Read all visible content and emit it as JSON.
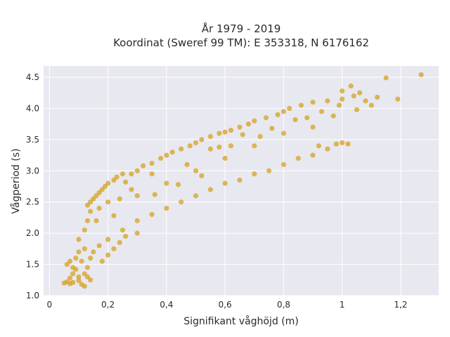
{
  "chart_data": {
    "type": "scatter",
    "title": "År 1979 - 2019",
    "subtitle": "Koordinat (Sweref 99 TM): E 353318, N 6176162",
    "xlabel": "Signifikant våghöjd (m)",
    "ylabel": "Vågperiod (s)",
    "xlim": [
      -0.02,
      1.33
    ],
    "ylim": [
      1.0,
      4.68
    ],
    "x_ticks": [
      0,
      0.2,
      0.4,
      0.6,
      0.8,
      1,
      1.2
    ],
    "x_tick_labels": [
      "0",
      "0,2",
      "0,4",
      "0,6",
      "0,8",
      "1",
      "1,2"
    ],
    "y_ticks": [
      1.0,
      1.5,
      2.0,
      2.5,
      3.0,
      3.5,
      4.0,
      4.5
    ],
    "y_tick_labels": [
      "1.0",
      "1.5",
      "2.0",
      "2.5",
      "3.0",
      "3.5",
      "4.0",
      "4.5"
    ],
    "grid": true,
    "background": "#e8e8f0",
    "marker_color": "#d4a017",
    "series": [
      {
        "points": [
          [
            0.05,
            1.2
          ],
          [
            0.06,
            1.22
          ],
          [
            0.07,
            1.19
          ],
          [
            0.08,
            1.21
          ],
          [
            0.1,
            1.24
          ],
          [
            0.11,
            1.18
          ],
          [
            0.12,
            1.15
          ],
          [
            0.06,
            1.5
          ],
          [
            0.07,
            1.55
          ],
          [
            0.08,
            1.45
          ],
          [
            0.09,
            1.6
          ],
          [
            0.1,
            1.7
          ],
          [
            0.1,
            1.9
          ],
          [
            0.11,
            1.55
          ],
          [
            0.12,
            1.75
          ],
          [
            0.12,
            2.05
          ],
          [
            0.13,
            2.2
          ],
          [
            0.13,
            2.45
          ],
          [
            0.14,
            2.5
          ],
          [
            0.15,
            2.55
          ],
          [
            0.16,
            2.6
          ],
          [
            0.17,
            2.65
          ],
          [
            0.18,
            2.7
          ],
          [
            0.19,
            2.75
          ],
          [
            0.2,
            2.8
          ],
          [
            0.22,
            2.85
          ],
          [
            0.23,
            2.9
          ],
          [
            0.25,
            2.95
          ],
          [
            0.26,
            2.82
          ],
          [
            0.28,
            2.95
          ],
          [
            0.3,
            3.0
          ],
          [
            0.32,
            3.08
          ],
          [
            0.35,
            3.12
          ],
          [
            0.38,
            3.2
          ],
          [
            0.4,
            3.25
          ],
          [
            0.42,
            3.3
          ],
          [
            0.45,
            3.35
          ],
          [
            0.48,
            3.4
          ],
          [
            0.5,
            3.45
          ],
          [
            0.52,
            3.5
          ],
          [
            0.55,
            3.55
          ],
          [
            0.58,
            3.6
          ],
          [
            0.6,
            3.62
          ],
          [
            0.62,
            3.65
          ],
          [
            0.65,
            3.7
          ],
          [
            0.68,
            3.75
          ],
          [
            0.7,
            3.8
          ],
          [
            0.74,
            3.85
          ],
          [
            0.78,
            3.9
          ],
          [
            0.8,
            3.95
          ],
          [
            0.82,
            4.0
          ],
          [
            0.86,
            4.05
          ],
          [
            0.9,
            4.1
          ],
          [
            0.95,
            4.12
          ],
          [
            1.0,
            4.15
          ],
          [
            1.04,
            4.2
          ],
          [
            1.08,
            4.12
          ],
          [
            1.12,
            4.18
          ],
          [
            1.19,
            4.15
          ],
          [
            1.15,
            4.49
          ],
          [
            1.27,
            4.54
          ],
          [
            1.03,
            4.36
          ],
          [
            1.0,
            4.28
          ],
          [
            1.06,
            4.25
          ],
          [
            1.1,
            4.05
          ],
          [
            1.05,
            3.98
          ],
          [
            0.97,
            3.88
          ],
          [
            1.0,
            3.45
          ],
          [
            1.02,
            3.43
          ],
          [
            0.98,
            3.43
          ],
          [
            0.92,
            3.4
          ],
          [
            0.95,
            3.35
          ],
          [
            0.9,
            3.25
          ],
          [
            0.85,
            3.2
          ],
          [
            0.8,
            3.1
          ],
          [
            0.75,
            3.0
          ],
          [
            0.7,
            2.95
          ],
          [
            0.65,
            2.85
          ],
          [
            0.6,
            2.8
          ],
          [
            0.55,
            2.7
          ],
          [
            0.5,
            2.6
          ],
          [
            0.45,
            2.5
          ],
          [
            0.4,
            2.4
          ],
          [
            0.35,
            2.3
          ],
          [
            0.3,
            2.2
          ],
          [
            0.25,
            2.05
          ],
          [
            0.2,
            1.9
          ],
          [
            0.17,
            1.8
          ],
          [
            0.15,
            1.7
          ],
          [
            0.14,
            1.6
          ],
          [
            0.13,
            1.45
          ],
          [
            0.12,
            1.35
          ],
          [
            0.13,
            1.3
          ],
          [
            0.14,
            1.25
          ],
          [
            0.09,
            1.42
          ],
          [
            0.08,
            1.35
          ],
          [
            0.07,
            1.28
          ],
          [
            0.1,
            1.3
          ],
          [
            0.18,
            1.55
          ],
          [
            0.2,
            1.65
          ],
          [
            0.22,
            1.75
          ],
          [
            0.24,
            1.85
          ],
          [
            0.26,
            1.95
          ],
          [
            0.3,
            2.0
          ],
          [
            0.22,
            2.28
          ],
          [
            0.17,
            2.4
          ],
          [
            0.14,
            2.35
          ],
          [
            0.16,
            2.2
          ],
          [
            0.2,
            2.5
          ],
          [
            0.3,
            2.6
          ],
          [
            0.4,
            2.8
          ],
          [
            0.5,
            3.0
          ],
          [
            0.6,
            3.2
          ],
          [
            0.7,
            3.4
          ],
          [
            0.8,
            3.6
          ],
          [
            0.9,
            3.7
          ],
          [
            0.72,
            3.55
          ],
          [
            0.62,
            3.4
          ],
          [
            0.55,
            3.35
          ],
          [
            0.47,
            3.1
          ],
          [
            0.35,
            2.95
          ],
          [
            0.28,
            2.7
          ],
          [
            0.24,
            2.55
          ],
          [
            0.88,
            3.85
          ],
          [
            0.93,
            3.95
          ],
          [
            0.99,
            4.05
          ],
          [
            0.84,
            3.82
          ],
          [
            0.76,
            3.68
          ],
          [
            0.66,
            3.58
          ],
          [
            0.58,
            3.38
          ],
          [
            0.36,
            2.62
          ],
          [
            0.44,
            2.78
          ],
          [
            0.52,
            2.92
          ]
        ]
      }
    ]
  }
}
